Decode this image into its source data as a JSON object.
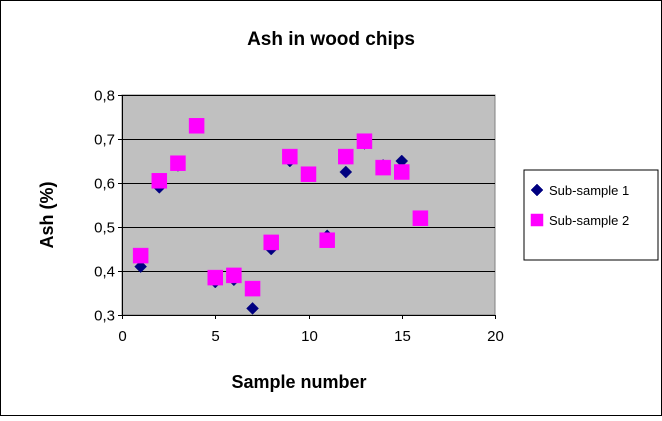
{
  "chart_data": {
    "type": "scatter",
    "title": "Ash in wood chips",
    "xlabel": "Sample number",
    "ylabel": "Ash (%)",
    "xlim": [
      0,
      20
    ],
    "ylim": [
      0.3,
      0.8
    ],
    "xticks": [
      0,
      5,
      10,
      15,
      20
    ],
    "yticks": [
      0.3,
      0.4,
      0.5,
      0.6,
      0.7,
      0.8
    ],
    "xtick_labels": [
      "0",
      "5",
      "10",
      "15",
      "20"
    ],
    "ytick_labels": [
      "0,3",
      "0,4",
      "0,5",
      "0,6",
      "0,7",
      "0,8"
    ],
    "grid": "horizontal",
    "legend_position": "right",
    "plot_background": "#c0c0c0",
    "series": [
      {
        "name": "Sub-sample 1",
        "marker": "diamond",
        "color": "#000080",
        "points": [
          {
            "x": 1,
            "y": 0.41
          },
          {
            "x": 2,
            "y": 0.59
          },
          {
            "x": 3,
            "y": 0.64
          },
          {
            "x": 4,
            "y": 0.73
          },
          {
            "x": 5,
            "y": 0.375
          },
          {
            "x": 6,
            "y": 0.38
          },
          {
            "x": 7,
            "y": 0.315
          },
          {
            "x": 8,
            "y": 0.45
          },
          {
            "x": 9,
            "y": 0.65
          },
          {
            "x": 10,
            "y": 0.62
          },
          {
            "x": 11,
            "y": 0.48
          },
          {
            "x": 12,
            "y": 0.625
          },
          {
            "x": 13,
            "y": 0.69
          },
          {
            "x": 14,
            "y": 0.64
          },
          {
            "x": 15,
            "y": 0.65
          }
        ]
      },
      {
        "name": "Sub-sample 2",
        "marker": "square",
        "color": "#ff00ff",
        "points": [
          {
            "x": 1,
            "y": 0.435
          },
          {
            "x": 2,
            "y": 0.605
          },
          {
            "x": 3,
            "y": 0.645
          },
          {
            "x": 4,
            "y": 0.73
          },
          {
            "x": 5,
            "y": 0.385
          },
          {
            "x": 6,
            "y": 0.39
          },
          {
            "x": 7,
            "y": 0.36
          },
          {
            "x": 8,
            "y": 0.465
          },
          {
            "x": 9,
            "y": 0.66
          },
          {
            "x": 10,
            "y": 0.62
          },
          {
            "x": 11,
            "y": 0.47
          },
          {
            "x": 12,
            "y": 0.66
          },
          {
            "x": 13,
            "y": 0.695
          },
          {
            "x": 14,
            "y": 0.635
          },
          {
            "x": 15,
            "y": 0.625
          },
          {
            "x": 16,
            "y": 0.52
          }
        ]
      }
    ]
  }
}
